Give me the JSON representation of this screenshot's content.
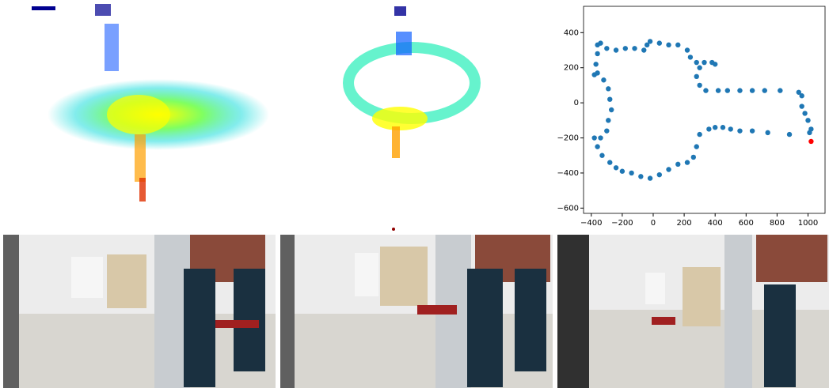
{
  "chart_data": {
    "type": "scatter",
    "xlim": [
      -450,
      1110
    ],
    "ylim": [
      -630,
      550
    ],
    "xticks": [
      {
        "value": -400,
        "label": "−400"
      },
      {
        "value": -200,
        "label": "−200"
      },
      0,
      200,
      400,
      600,
      800,
      1000
    ],
    "yticks": [
      {
        "value": -600,
        "label": "−600"
      },
      {
        "value": -400,
        "label": "−400"
      },
      {
        "value": -200,
        "label": "−200"
      },
      0,
      200,
      400
    ],
    "series": [
      {
        "color": "#1f77b4",
        "x": [
          1010,
          880,
          740,
          640,
          560,
          500,
          450,
          400,
          360,
          300,
          280,
          260,
          220,
          160,
          100,
          40,
          -20,
          -80,
          -140,
          -200,
          -240,
          -280,
          -330,
          -360,
          -380,
          -340,
          -300,
          -290,
          -270,
          -280,
          -290,
          -320,
          -360,
          -380,
          -370,
          -360,
          -360,
          -340,
          -300,
          -240,
          -180,
          -120,
          -60,
          -40,
          -20,
          40,
          100,
          160,
          220,
          240,
          280,
          330,
          380,
          400,
          300,
          280,
          300,
          340,
          420,
          480,
          560,
          640,
          720,
          820,
          940,
          960,
          960,
          980,
          1000,
          1020
        ],
        "values": [
          -170,
          -180,
          -170,
          -160,
          -160,
          -150,
          -140,
          -140,
          -150,
          -180,
          -250,
          -310,
          -340,
          -350,
          -380,
          -410,
          -430,
          -420,
          -400,
          -390,
          -370,
          -340,
          -300,
          -250,
          -200,
          -200,
          -160,
          -100,
          -40,
          20,
          80,
          130,
          170,
          160,
          220,
          280,
          330,
          340,
          310,
          300,
          310,
          310,
          300,
          330,
          350,
          340,
          330,
          330,
          300,
          260,
          230,
          230,
          230,
          220,
          200,
          150,
          100,
          70,
          70,
          70,
          70,
          70,
          70,
          70,
          60,
          40,
          -20,
          -60,
          -100,
          -150
        ]
      },
      {
        "color": "#ff0000",
        "x": [
          1020
        ],
        "values": [
          -220
        ]
      }
    ]
  }
}
